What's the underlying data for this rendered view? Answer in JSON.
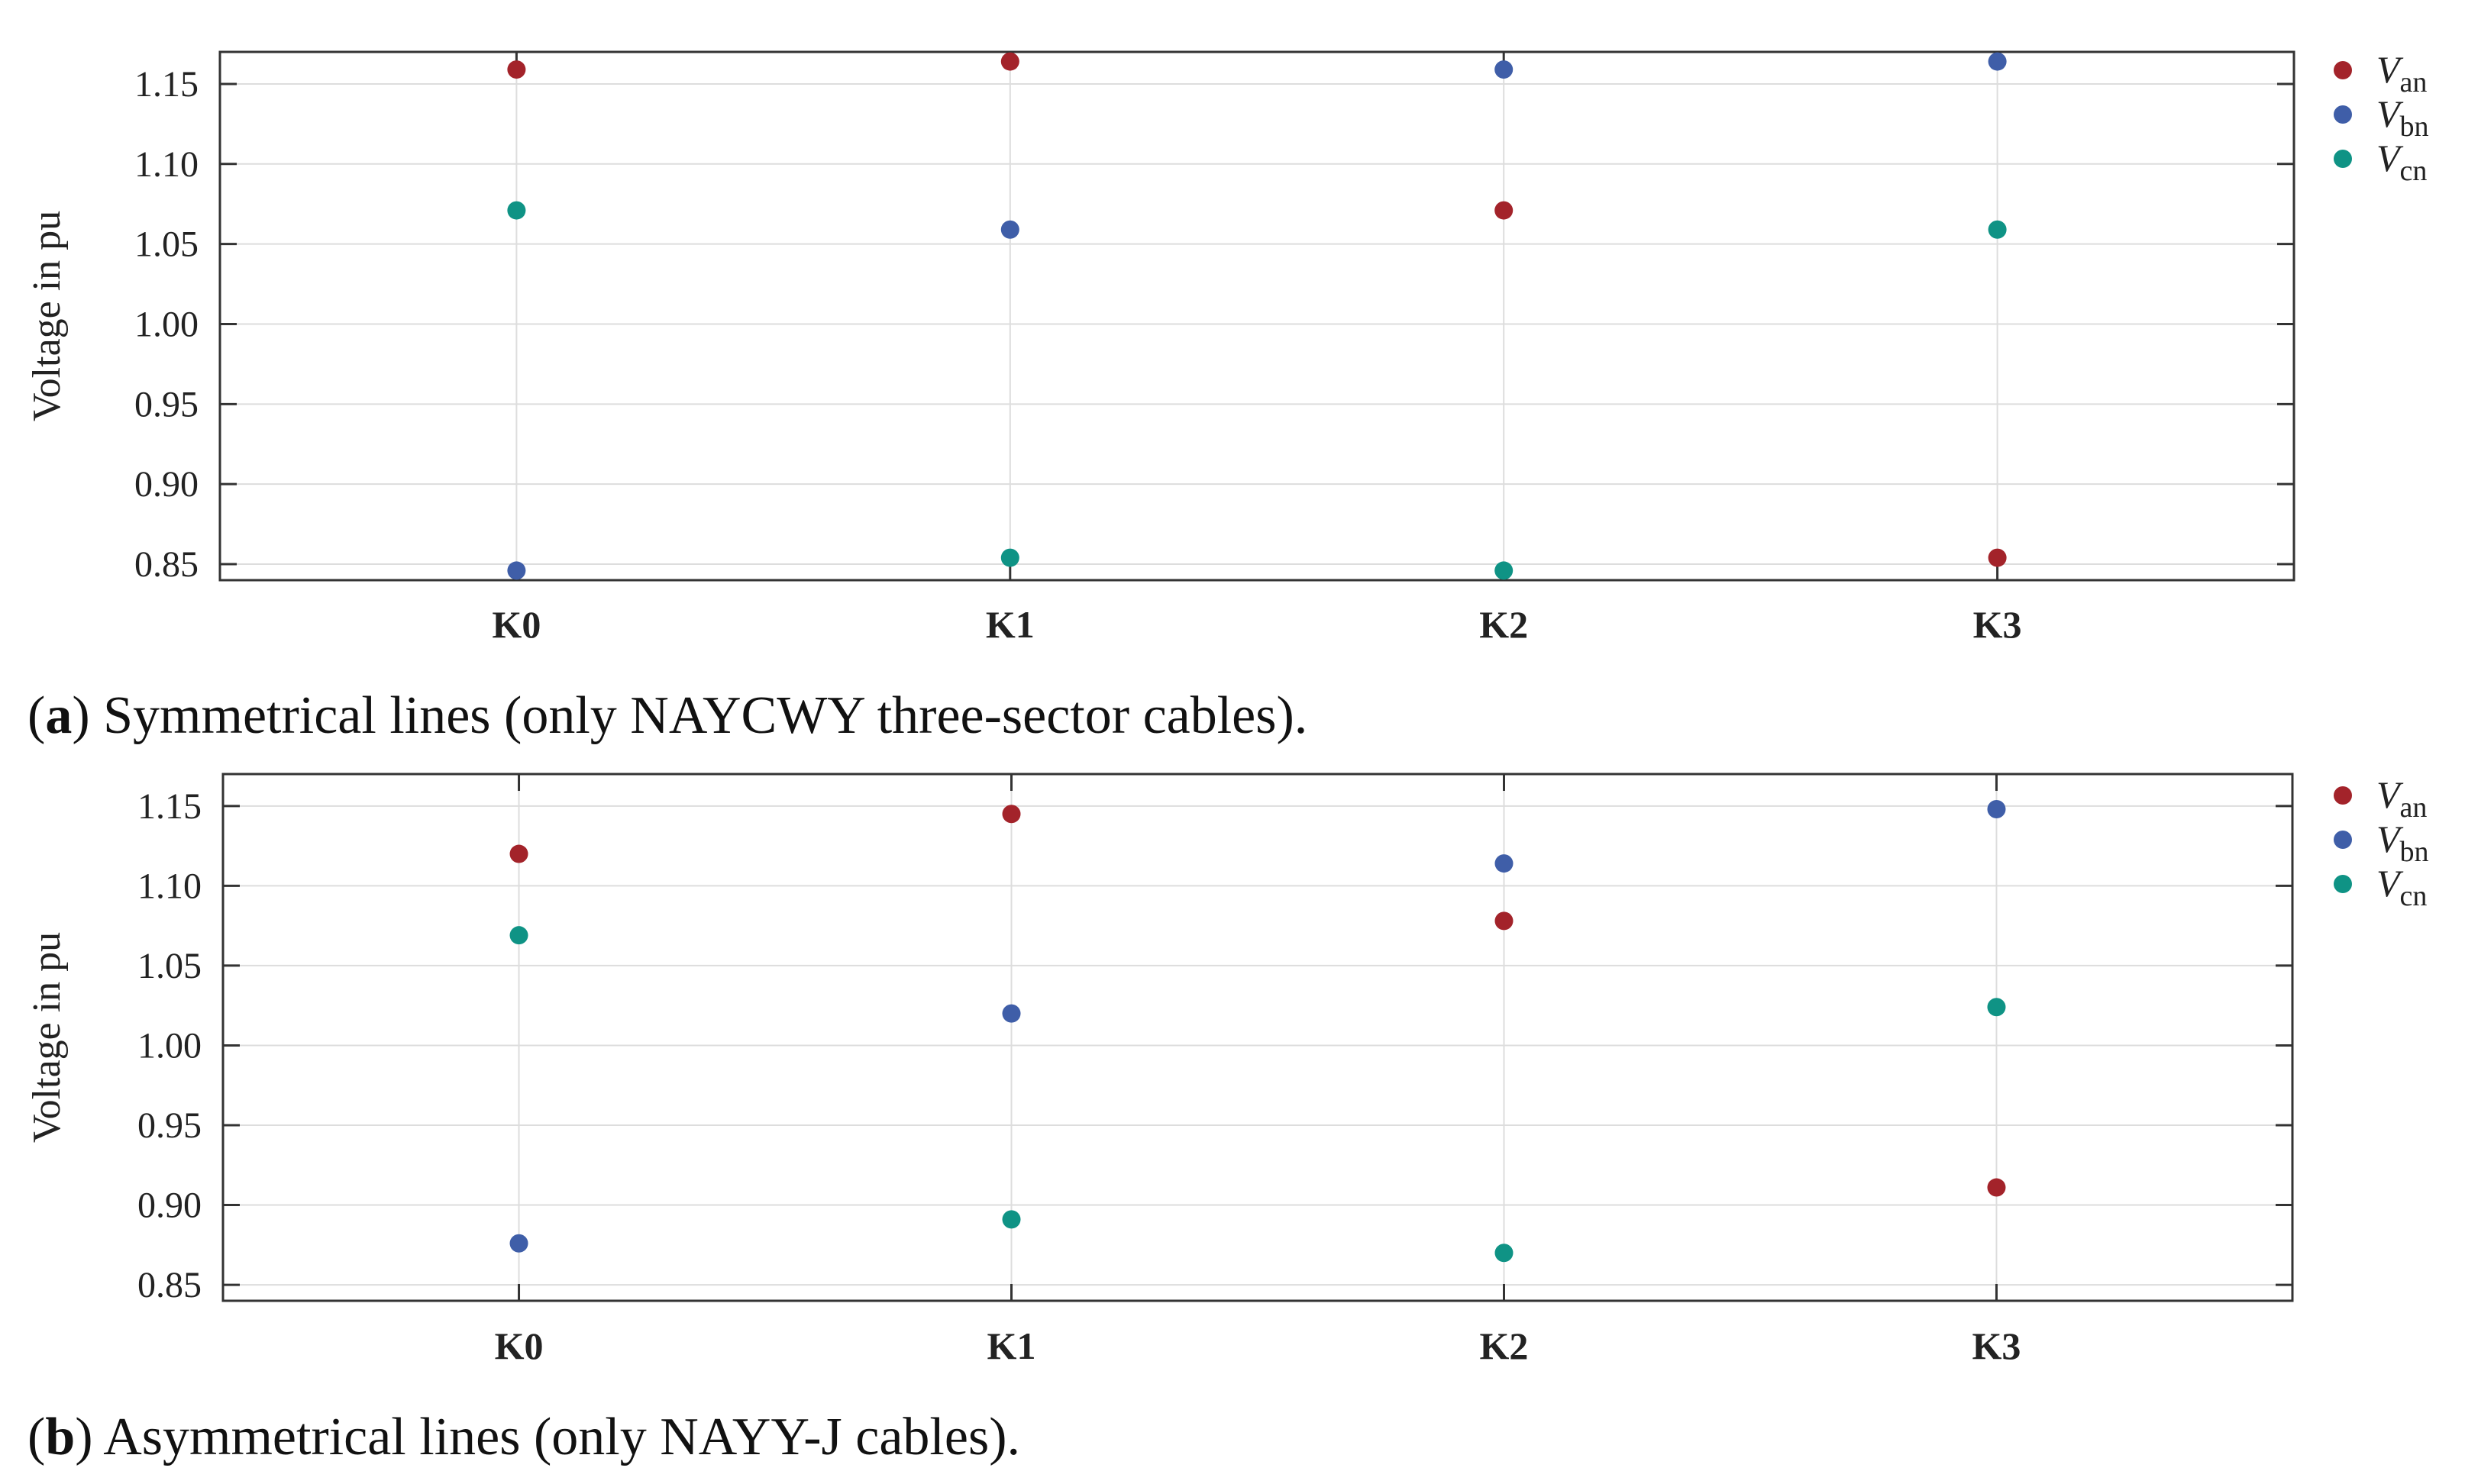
{
  "chart_data": [
    {
      "type": "scatter",
      "panel_letter": "a",
      "caption": "Symmetrical lines (only NAYCWY three-sector cables).",
      "categories": [
        "K0",
        "K1",
        "K2",
        "K3"
      ],
      "ylabel": "Voltage in pu",
      "ylim": [
        0.84,
        1.17
      ],
      "yticks": [
        "0.85",
        "0.90",
        "0.95",
        "1.00",
        "1.05",
        "1.10",
        "1.15"
      ],
      "grid": true,
      "legend": "right",
      "series": [
        {
          "name": "V",
          "sub": "an",
          "color": "#a3232a",
          "values": [
            1.159,
            1.164,
            1.071,
            0.854
          ]
        },
        {
          "name": "V",
          "sub": "bn",
          "color": "#3f5ea8",
          "values": [
            0.846,
            1.059,
            1.159,
            1.164
          ]
        },
        {
          "name": "V",
          "sub": "cn",
          "color": "#0f9385",
          "values": [
            1.071,
            0.854,
            0.846,
            1.059
          ]
        }
      ]
    },
    {
      "type": "scatter",
      "panel_letter": "b",
      "caption": "Asymmetrical lines (only NAYY-J cables).",
      "categories": [
        "K0",
        "K1",
        "K2",
        "K3"
      ],
      "ylabel": "Voltage in pu",
      "ylim": [
        0.84,
        1.17
      ],
      "yticks": [
        "0.85",
        "0.90",
        "0.95",
        "1.00",
        "1.05",
        "1.10",
        "1.15"
      ],
      "grid": true,
      "legend": "right",
      "series": [
        {
          "name": "V",
          "sub": "an",
          "color": "#a3232a",
          "values": [
            1.12,
            1.145,
            1.078,
            0.911
          ]
        },
        {
          "name": "V",
          "sub": "bn",
          "color": "#3f5ea8",
          "values": [
            0.876,
            1.02,
            1.114,
            1.148
          ]
        },
        {
          "name": "V",
          "sub": "cn",
          "color": "#0f9385",
          "values": [
            1.069,
            0.891,
            0.87,
            1.024
          ]
        }
      ]
    }
  ]
}
